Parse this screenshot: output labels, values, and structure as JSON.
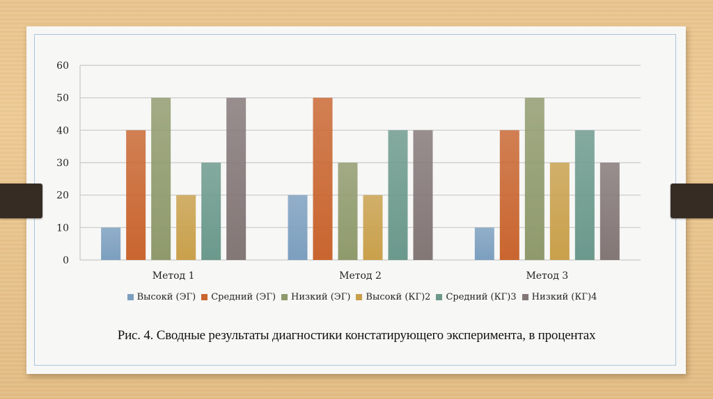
{
  "chart_data": {
    "type": "bar",
    "title": "",
    "xlabel": "",
    "ylabel": "",
    "ylim": [
      0,
      60
    ],
    "yticks": [
      "0",
      "10",
      "20",
      "30",
      "40",
      "50",
      "60"
    ],
    "grid": true,
    "legend_position": "bottom",
    "categories": [
      "Метод 1",
      "Метод 2",
      "Метод 3"
    ],
    "series": [
      {
        "name": "Высокй (ЭГ)",
        "color": "#7c9fbf",
        "values": [
          10,
          20,
          10
        ]
      },
      {
        "name": "Средний (ЭГ)",
        "color": "#c9652f",
        "values": [
          40,
          50,
          40
        ]
      },
      {
        "name": "Низкий (ЭГ)",
        "color": "#8f9a6c",
        "values": [
          50,
          30,
          50
        ]
      },
      {
        "name": "Высокй (КГ)2",
        "color": "#c9a04b",
        "values": [
          20,
          20,
          30
        ]
      },
      {
        "name": "Средний (КГ)3",
        "color": "#6b998c",
        "values": [
          30,
          40,
          40
        ]
      },
      {
        "name": "Низкий (КГ)4",
        "color": "#837776",
        "values": [
          50,
          40,
          30
        ]
      }
    ]
  },
  "caption": "Рис. 4. Сводные результаты диагностики констатирующего эксперимента, в процентах"
}
